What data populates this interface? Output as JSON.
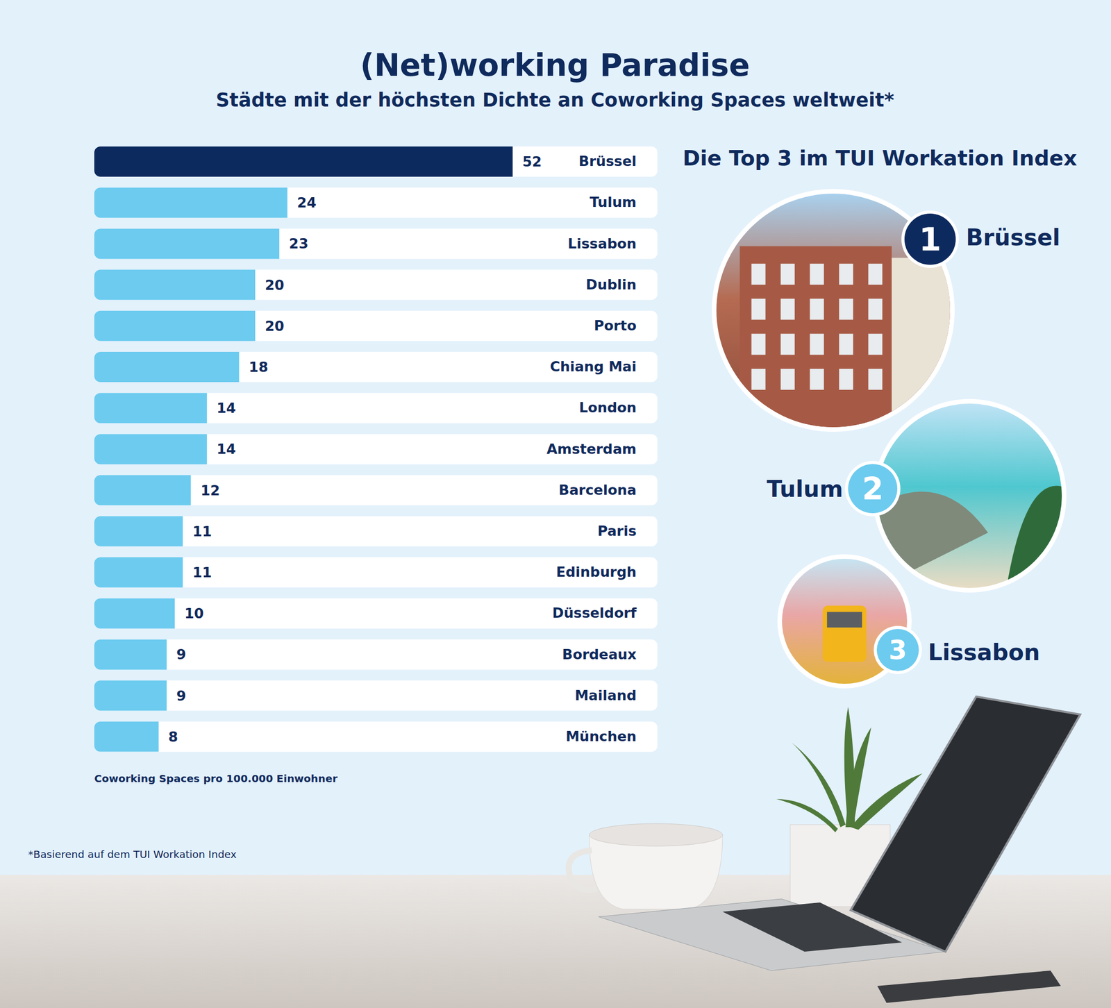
{
  "chart_data": {
    "type": "bar",
    "orientation": "horizontal",
    "title": "(Net)working Paradise",
    "subtitle": "Städte mit der höchsten Dichte an Coworking Spaces weltweit*",
    "categories": [
      "Brüssel",
      "Tulum",
      "Lissabon",
      "Dublin",
      "Porto",
      "Chiang Mai",
      "London",
      "Amsterdam",
      "Barcelona",
      "Paris",
      "Edinburgh",
      "Düsseldorf",
      "Bordeaux",
      "Mailand",
      "München"
    ],
    "values": [
      52,
      24,
      23,
      20,
      20,
      18,
      14,
      14,
      12,
      11,
      11,
      10,
      9,
      9,
      8
    ],
    "colors": [
      "#0d2a5e",
      "#6ccbef",
      "#6ccbef",
      "#6ccbef",
      "#6ccbef",
      "#6ccbef",
      "#6ccbef",
      "#6ccbef",
      "#6ccbef",
      "#6ccbef",
      "#6ccbef",
      "#6ccbef",
      "#6ccbef",
      "#6ccbef",
      "#6ccbef"
    ],
    "xlim": [
      0,
      70
    ],
    "data_labels": true,
    "tick_labels": "y",
    "x_label": "Coworking Spaces pro 100.000 Einwohner",
    "footnote": "*Basierend auf dem TUI Workation Index",
    "top3": {
      "title": "Die Top 3 im TUI Workation Index",
      "items": [
        {
          "rank": 1,
          "label": "Brüssel"
        },
        {
          "rank": 2,
          "label": "Tulum"
        },
        {
          "rank": 3,
          "label": "Lissabon"
        }
      ]
    }
  }
}
